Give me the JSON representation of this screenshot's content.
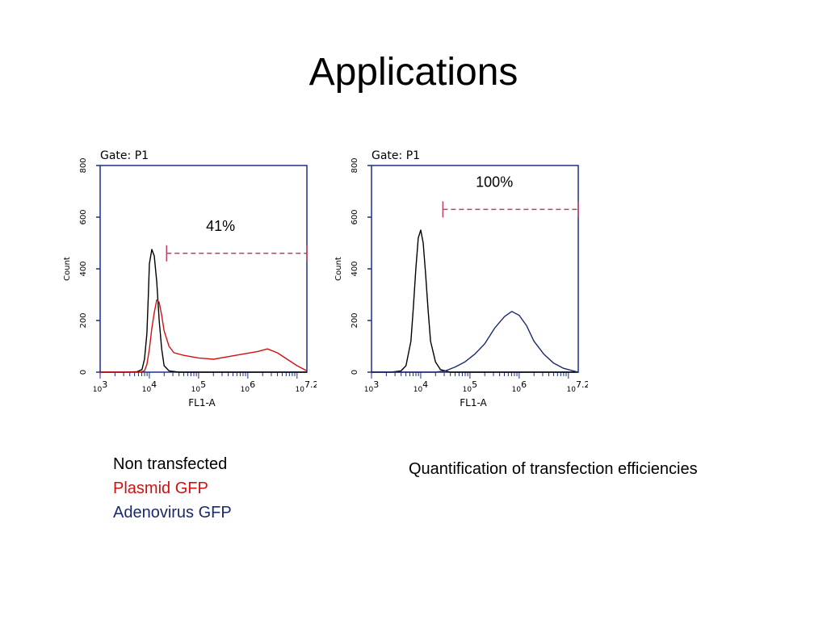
{
  "slide": {
    "title": "Applications"
  },
  "legend": {
    "items": [
      {
        "label": "Non transfected",
        "color": "#000000"
      },
      {
        "label": "Plasmid GFP",
        "color": "#d01010"
      },
      {
        "label": "Adenovirus GFP",
        "color": "#1a2a6c"
      }
    ]
  },
  "caption": "Quantification of transfection efficiencies",
  "chart_data": [
    {
      "type": "line",
      "title": "Gate: P1",
      "xlabel": "FL1-A",
      "ylabel": "Count",
      "x_scale": "log",
      "xlim": [
        3,
        7.2
      ],
      "ylim": [
        0,
        800
      ],
      "x_tick_labels": [
        "10^3",
        "10^4",
        "10^5",
        "10^6",
        "10^7.2"
      ],
      "y_tick_labels": [
        "0",
        "200",
        "400",
        "600",
        "800"
      ],
      "gate": {
        "label": "41%",
        "from_log": 4.35,
        "to_log": 7.2,
        "level": 460
      },
      "series": [
        {
          "name": "Non transfected",
          "color": "#000000",
          "points": [
            [
              3.0,
              0
            ],
            [
              3.5,
              0
            ],
            [
              3.75,
              2
            ],
            [
              3.85,
              10
            ],
            [
              3.9,
              50
            ],
            [
              3.95,
              150
            ],
            [
              3.98,
              300
            ],
            [
              4.0,
              420
            ],
            [
              4.05,
              475
            ],
            [
              4.1,
              450
            ],
            [
              4.15,
              350
            ],
            [
              4.2,
              200
            ],
            [
              4.25,
              90
            ],
            [
              4.3,
              25
            ],
            [
              4.4,
              5
            ],
            [
              4.6,
              0
            ],
            [
              7.2,
              0
            ]
          ]
        },
        {
          "name": "Plasmid GFP",
          "color": "#d01010",
          "points": [
            [
              3.0,
              0
            ],
            [
              3.8,
              0
            ],
            [
              3.9,
              5
            ],
            [
              3.95,
              30
            ],
            [
              4.0,
              90
            ],
            [
              4.05,
              170
            ],
            [
              4.1,
              230
            ],
            [
              4.15,
              280
            ],
            [
              4.2,
              270
            ],
            [
              4.25,
              220
            ],
            [
              4.3,
              160
            ],
            [
              4.4,
              100
            ],
            [
              4.5,
              75
            ],
            [
              4.7,
              65
            ],
            [
              5.0,
              55
            ],
            [
              5.3,
              50
            ],
            [
              5.6,
              60
            ],
            [
              5.9,
              70
            ],
            [
              6.2,
              80
            ],
            [
              6.4,
              90
            ],
            [
              6.6,
              75
            ],
            [
              6.8,
              50
            ],
            [
              7.0,
              25
            ],
            [
              7.2,
              5
            ]
          ]
        }
      ]
    },
    {
      "type": "line",
      "title": "Gate: P1",
      "xlabel": "FL1-A",
      "ylabel": "Count",
      "x_scale": "log",
      "xlim": [
        3,
        7.2
      ],
      "ylim": [
        0,
        800
      ],
      "x_tick_labels": [
        "10^3",
        "10^4",
        "10^5",
        "10^6",
        "10^7.2"
      ],
      "y_tick_labels": [
        "0",
        "200",
        "400",
        "600",
        "800"
      ],
      "gate": {
        "label": "100%",
        "from_log": 4.45,
        "to_log": 7.2,
        "level": 630
      },
      "series": [
        {
          "name": "Non transfected",
          "color": "#000000",
          "points": [
            [
              3.0,
              0
            ],
            [
              3.4,
              0
            ],
            [
              3.6,
              5
            ],
            [
              3.7,
              25
            ],
            [
              3.8,
              120
            ],
            [
              3.85,
              250
            ],
            [
              3.9,
              400
            ],
            [
              3.95,
              520
            ],
            [
              4.0,
              550
            ],
            [
              4.05,
              500
            ],
            [
              4.1,
              380
            ],
            [
              4.15,
              240
            ],
            [
              4.2,
              120
            ],
            [
              4.3,
              40
            ],
            [
              4.4,
              10
            ],
            [
              4.6,
              0
            ],
            [
              7.2,
              0
            ]
          ]
        },
        {
          "name": "Adenovirus GFP",
          "color": "#1a2a6c",
          "points": [
            [
              3.0,
              0
            ],
            [
              4.3,
              0
            ],
            [
              4.5,
              5
            ],
            [
              4.7,
              20
            ],
            [
              4.9,
              40
            ],
            [
              5.1,
              70
            ],
            [
              5.3,
              110
            ],
            [
              5.5,
              170
            ],
            [
              5.7,
              215
            ],
            [
              5.85,
              235
            ],
            [
              6.0,
              220
            ],
            [
              6.15,
              180
            ],
            [
              6.3,
              120
            ],
            [
              6.5,
              70
            ],
            [
              6.7,
              35
            ],
            [
              6.9,
              15
            ],
            [
              7.1,
              5
            ],
            [
              7.2,
              0
            ]
          ]
        }
      ]
    }
  ]
}
